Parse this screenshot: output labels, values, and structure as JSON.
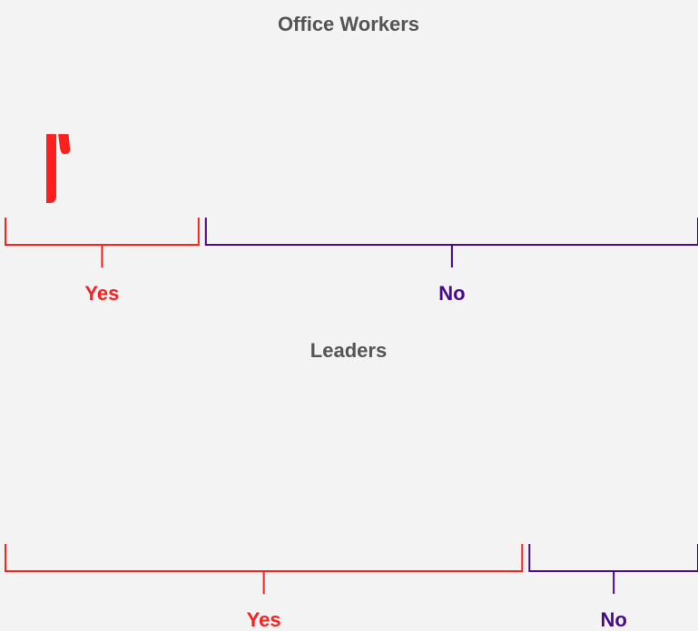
{
  "chart_data": [
    {
      "type": "pictogram",
      "title": "Office Workers",
      "categories": [
        "Yes",
        "No"
      ],
      "values": [
        2.9,
        7.1
      ],
      "colors": [
        "#ff1f1f",
        "#4b0a8c"
      ]
    },
    {
      "type": "pictogram",
      "title": "Leaders",
      "categories": [
        "Yes",
        "No"
      ],
      "values": [
        7.4,
        2.6
      ],
      "colors": [
        "#ff1f1f",
        "#4b0a8c"
      ]
    }
  ]
}
